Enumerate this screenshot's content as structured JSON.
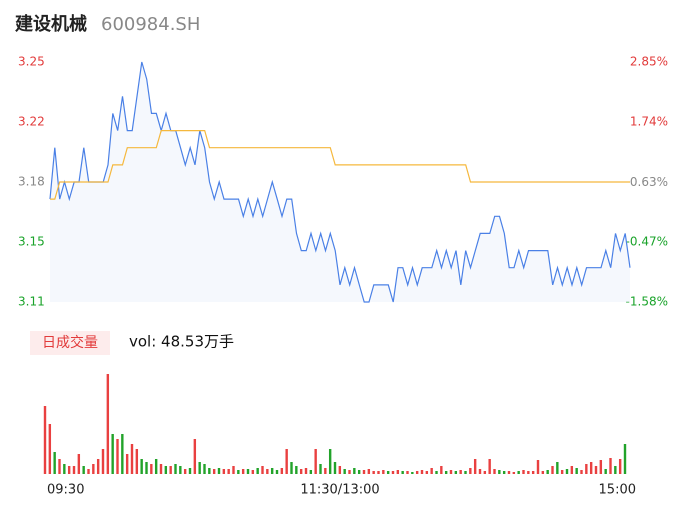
{
  "stock_name": "建设机械",
  "stock_code": "600984.SH",
  "chart_data": {
    "type": "line",
    "x": [
      0,
      2,
      4,
      6,
      8,
      10,
      12,
      14,
      16,
      18,
      20,
      22,
      24,
      26,
      28,
      30,
      32,
      34,
      36,
      38,
      40,
      42,
      44,
      46,
      48,
      50,
      52,
      54,
      56,
      58,
      60,
      62,
      64,
      66,
      68,
      70,
      72,
      74,
      76,
      78,
      80,
      82,
      84,
      86,
      88,
      90,
      92,
      94,
      96,
      98,
      100,
      102,
      104,
      106,
      108,
      110,
      112,
      114,
      116,
      118,
      120,
      122,
      124,
      126,
      128,
      130,
      132,
      134,
      136,
      138,
      140,
      142,
      144,
      146,
      148,
      150,
      152,
      154,
      156,
      158,
      160,
      162,
      164,
      166,
      168,
      170,
      172,
      174,
      176,
      178,
      180,
      182,
      184,
      186,
      188,
      190,
      192,
      194,
      196,
      198,
      200,
      202,
      204,
      206,
      208,
      210,
      212,
      214,
      216,
      218,
      220,
      222,
      224,
      226,
      228,
      230,
      232,
      234,
      236,
      238,
      240
    ],
    "xlim": [
      0,
      240
    ],
    "xticks": [
      {
        "value": 0,
        "label": "09:30"
      },
      {
        "value": 120,
        "label": "11:30/13:00"
      },
      {
        "value": 240,
        "label": "15:00"
      }
    ],
    "series": [
      {
        "color": "#4a80e6",
        "values": [
          3.17,
          3.2,
          3.17,
          3.18,
          3.17,
          3.18,
          3.18,
          3.2,
          3.18,
          3.18,
          3.18,
          3.18,
          3.19,
          3.22,
          3.21,
          3.23,
          3.21,
          3.21,
          3.23,
          3.25,
          3.24,
          3.22,
          3.22,
          3.21,
          3.22,
          3.21,
          3.21,
          3.2,
          3.19,
          3.2,
          3.19,
          3.21,
          3.2,
          3.18,
          3.17,
          3.18,
          3.17,
          3.17,
          3.17,
          3.17,
          3.16,
          3.17,
          3.16,
          3.17,
          3.16,
          3.17,
          3.18,
          3.17,
          3.16,
          3.17,
          3.17,
          3.15,
          3.14,
          3.14,
          3.15,
          3.14,
          3.15,
          3.14,
          3.15,
          3.14,
          3.12,
          3.13,
          3.12,
          3.13,
          3.12,
          3.11,
          3.11,
          3.12,
          3.12,
          3.12,
          3.12,
          3.11,
          3.13,
          3.13,
          3.12,
          3.13,
          3.12,
          3.13,
          3.13,
          3.13,
          3.14,
          3.13,
          3.14,
          3.13,
          3.14,
          3.12,
          3.14,
          3.13,
          3.14,
          3.15,
          3.15,
          3.15,
          3.16,
          3.16,
          3.15,
          3.13,
          3.13,
          3.14,
          3.13,
          3.14,
          3.14,
          3.14,
          3.14,
          3.14,
          3.12,
          3.13,
          3.12,
          3.13,
          3.12,
          3.13,
          3.12,
          3.13,
          3.13,
          3.13,
          3.13,
          3.14,
          3.13,
          3.15,
          3.14,
          3.15,
          3.13
        ]
      },
      {
        "color": "#f5b83d",
        "values": [
          3.17,
          3.17,
          3.18,
          3.18,
          3.18,
          3.18,
          3.18,
          3.18,
          3.18,
          3.18,
          3.18,
          3.18,
          3.18,
          3.19,
          3.19,
          3.19,
          3.2,
          3.2,
          3.2,
          3.2,
          3.2,
          3.2,
          3.2,
          3.21,
          3.21,
          3.21,
          3.21,
          3.21,
          3.21,
          3.21,
          3.21,
          3.21,
          3.21,
          3.2,
          3.2,
          3.2,
          3.2,
          3.2,
          3.2,
          3.2,
          3.2,
          3.2,
          3.2,
          3.2,
          3.2,
          3.2,
          3.2,
          3.2,
          3.2,
          3.2,
          3.2,
          3.2,
          3.2,
          3.2,
          3.2,
          3.2,
          3.2,
          3.2,
          3.2,
          3.19,
          3.19,
          3.19,
          3.19,
          3.19,
          3.19,
          3.19,
          3.19,
          3.19,
          3.19,
          3.19,
          3.19,
          3.19,
          3.19,
          3.19,
          3.19,
          3.19,
          3.19,
          3.19,
          3.19,
          3.19,
          3.19,
          3.19,
          3.19,
          3.19,
          3.19,
          3.19,
          3.19,
          3.18,
          3.18,
          3.18,
          3.18,
          3.18,
          3.18,
          3.18,
          3.18,
          3.18,
          3.18,
          3.18,
          3.18,
          3.18,
          3.18,
          3.18,
          3.18,
          3.18,
          3.18,
          3.18,
          3.18,
          3.18,
          3.18,
          3.18,
          3.18,
          3.18,
          3.18,
          3.18,
          3.18,
          3.18,
          3.18,
          3.18,
          3.18,
          3.18,
          3.18
        ]
      }
    ],
    "ylim": [
      3.11,
      3.25
    ],
    "yticks": [
      3.25,
      {
        "value": 3.215,
        "label": "3.22"
      },
      3.18,
      {
        "value": 3.145,
        "label": "3.15"
      },
      3.11
    ],
    "y2lim": [
      -1.58,
      2.85
    ],
    "y2ticks": [
      {
        "value": 2.85,
        "label": "2.85%"
      },
      {
        "value": 1.74,
        "label": "1.74%"
      },
      {
        "value": 0.63,
        "label": "0.63%"
      },
      {
        "value": -0.47,
        "label": "-0.47%"
      },
      {
        "value": -1.58,
        "label": "-1.58%"
      }
    ],
    "volume": {
      "type": "bar",
      "label": "日成交量",
      "text": "vol: 48.53万手",
      "up_color": "#e94040",
      "down_color": "#22a32a",
      "ylim": [
        0,
        40000
      ],
      "values": [
        27200,
        20000,
        8800,
        6000,
        4000,
        3200,
        3200,
        8000,
        3200,
        2000,
        4000,
        6000,
        10000,
        40000,
        16000,
        14000,
        16000,
        8000,
        12000,
        10000,
        6000,
        4800,
        4000,
        6000,
        4000,
        3200,
        3200,
        4000,
        3200,
        2000,
        2400,
        14000,
        4800,
        4000,
        2400,
        2000,
        2400,
        2000,
        2000,
        3200,
        1600,
        2000,
        2000,
        1600,
        2400,
        3200,
        2000,
        2400,
        1600,
        2400,
        10000,
        4800,
        3200,
        2000,
        2400,
        1600,
        10000,
        4000,
        2400,
        10000,
        4800,
        3200,
        2000,
        1600,
        2400,
        1600,
        1600,
        2000,
        1200,
        1200,
        1600,
        1200,
        1200,
        1600,
        1200,
        1200,
        800,
        1200,
        1600,
        1200,
        2400,
        1200,
        3200,
        1200,
        1600,
        1200,
        1600,
        1200,
        2400,
        6000,
        2000,
        1200,
        6000,
        2000,
        1600,
        1200,
        1200,
        800,
        1200,
        1600,
        1200,
        1200,
        5600,
        1200,
        1600,
        3200,
        4800,
        1600,
        2000,
        3200,
        2400,
        1600,
        4000,
        4800,
        3200,
        5600,
        2000,
        6400,
        3200,
        6000,
        12000
      ]
    }
  }
}
